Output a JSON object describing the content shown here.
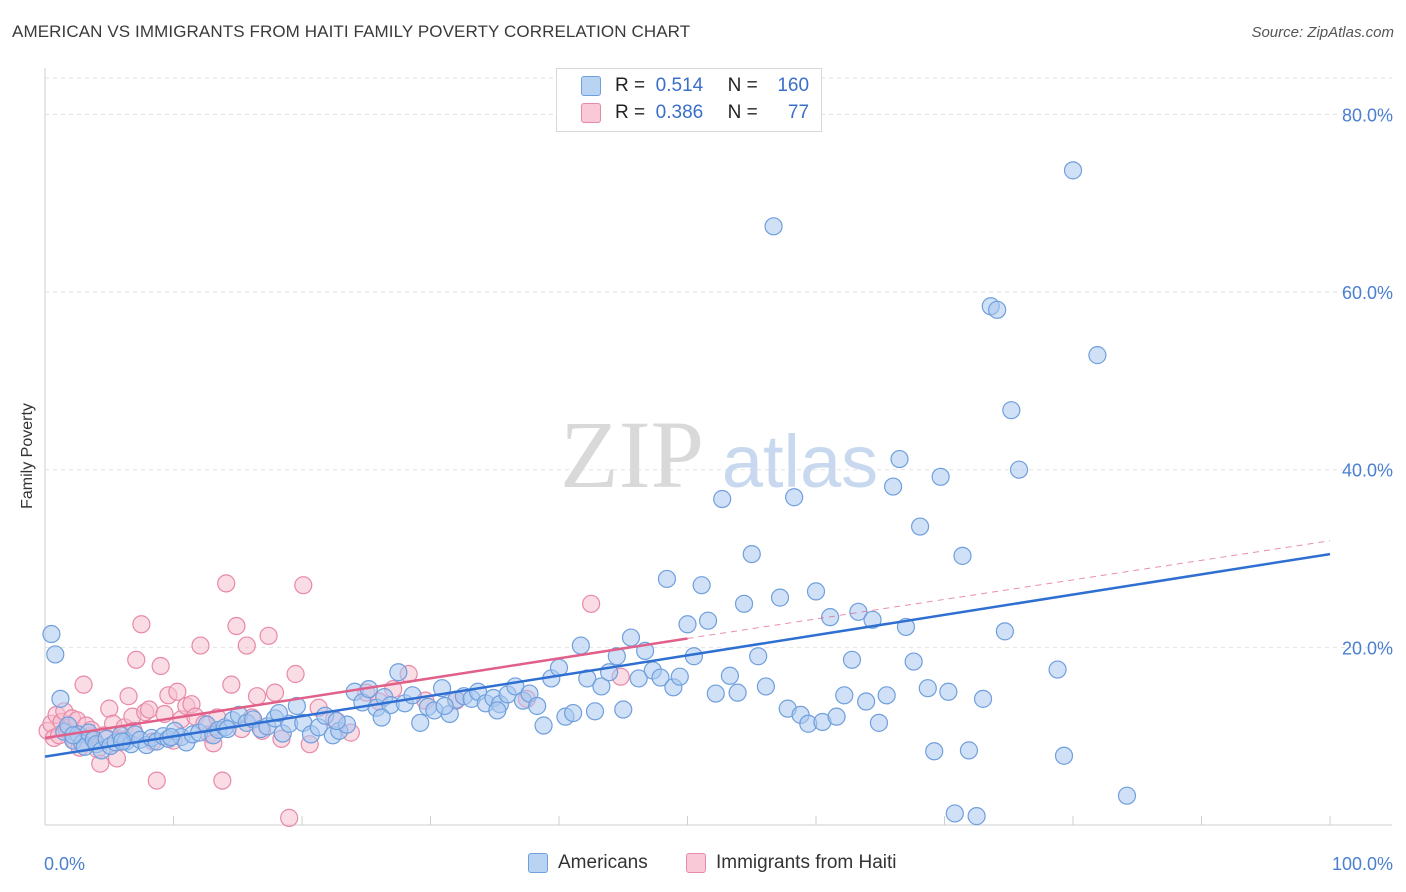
{
  "title": "AMERICAN VS IMMIGRANTS FROM HAITI FAMILY POVERTY CORRELATION CHART",
  "source": "Source: ZipAtlas.com",
  "watermark": {
    "zip": "ZIP",
    "atlas": "atlas"
  },
  "legend_top": {
    "rows": [
      {
        "r_label": "R =",
        "r_value": "0.514",
        "n_label": "N =",
        "n_value": "160"
      },
      {
        "r_label": "R =",
        "r_value": "0.386",
        "n_label": "N =",
        "n_value": "77"
      }
    ]
  },
  "legend_bottom": {
    "americans": "Americans",
    "haiti": "Immigrants from Haiti"
  },
  "colors": {
    "blue_fill": "#a9c8f0",
    "blue_stroke": "#6f9fdc",
    "blue_line": "#2e6fd1",
    "pink_fill": "#f6bfd0",
    "pink_stroke": "#e889a8",
    "pink_line": "#e0608a",
    "tick": "#4a7fd0",
    "grid": "#e2e2e2"
  },
  "chart_data": {
    "type": "scatter",
    "title": "AMERICAN VS IMMIGRANTS FROM HAITI FAMILY POVERTY CORRELATION CHART",
    "xlabel": "",
    "ylabel": "Family Poverty",
    "xlim": [
      0,
      100
    ],
    "ylim": [
      0,
      85
    ],
    "x_ticks": [
      "0.0%",
      "100.0%"
    ],
    "y_ticks": [
      {
        "value": 20,
        "label": "20.0%"
      },
      {
        "value": 40,
        "label": "40.0%"
      },
      {
        "value": 60,
        "label": "60.0%"
      },
      {
        "value": 80,
        "label": "80.0%"
      }
    ],
    "grid": true,
    "series": [
      {
        "name": "Americans",
        "trend": {
          "x": [
            0,
            100
          ],
          "y": [
            7.7,
            30.5
          ]
        },
        "points": [
          [
            0.5,
            21.5
          ],
          [
            0.8,
            19.2
          ],
          [
            1.2,
            14.2
          ],
          [
            1.5,
            10.5
          ],
          [
            1.8,
            11.2
          ],
          [
            2.2,
            9.5
          ],
          [
            2.6,
            10.2
          ],
          [
            2.9,
            9.2
          ],
          [
            3.1,
            8.8
          ],
          [
            3.4,
            10.4
          ],
          [
            3.8,
            9.6
          ],
          [
            4.0,
            9.1
          ],
          [
            4.4,
            8.4
          ],
          [
            4.8,
            9.7
          ],
          [
            5.1,
            8.9
          ],
          [
            5.5,
            9.3
          ],
          [
            5.9,
            10.1
          ],
          [
            6.3,
            9.4
          ],
          [
            6.7,
            9.1
          ],
          [
            7.0,
            10.2
          ],
          [
            7.4,
            9.6
          ],
          [
            7.9,
            9.0
          ],
          [
            8.3,
            9.8
          ],
          [
            8.7,
            9.4
          ],
          [
            9.2,
            10.0
          ],
          [
            9.6,
            9.7
          ],
          [
            10.1,
            10.6
          ],
          [
            10.6,
            9.9
          ],
          [
            11.0,
            9.3
          ],
          [
            11.5,
            10.2
          ],
          [
            12.0,
            10.4
          ],
          [
            12.6,
            11.3
          ],
          [
            13.1,
            10.1
          ],
          [
            13.5,
            10.7
          ],
          [
            14.0,
            11.0
          ],
          [
            14.6,
            11.8
          ],
          [
            15.1,
            12.4
          ],
          [
            15.7,
            11.5
          ],
          [
            16.2,
            11.9
          ],
          [
            16.8,
            10.8
          ],
          [
            17.3,
            11.1
          ],
          [
            17.9,
            12.0
          ],
          [
            18.5,
            10.3
          ],
          [
            19.0,
            11.4
          ],
          [
            19.6,
            13.4
          ],
          [
            20.1,
            11.5
          ],
          [
            20.7,
            10.2
          ],
          [
            21.3,
            11.0
          ],
          [
            21.8,
            12.3
          ],
          [
            22.4,
            10.1
          ],
          [
            22.9,
            10.6
          ],
          [
            23.5,
            11.3
          ],
          [
            24.1,
            15.0
          ],
          [
            24.7,
            13.8
          ],
          [
            25.2,
            15.3
          ],
          [
            25.8,
            13.2
          ],
          [
            26.4,
            14.4
          ],
          [
            26.9,
            13.5
          ],
          [
            27.5,
            17.2
          ],
          [
            28.0,
            13.7
          ],
          [
            28.6,
            14.6
          ],
          [
            29.2,
            11.5
          ],
          [
            29.8,
            13.3
          ],
          [
            30.3,
            12.9
          ],
          [
            30.9,
            15.4
          ],
          [
            31.5,
            12.5
          ],
          [
            32.0,
            14.1
          ],
          [
            32.6,
            14.5
          ],
          [
            33.2,
            14.2
          ],
          [
            33.7,
            15.0
          ],
          [
            34.3,
            13.7
          ],
          [
            34.9,
            14.3
          ],
          [
            35.4,
            13.6
          ],
          [
            36.0,
            14.7
          ],
          [
            36.6,
            15.6
          ],
          [
            37.2,
            14.0
          ],
          [
            37.7,
            14.8
          ],
          [
            38.3,
            13.4
          ],
          [
            38.8,
            11.2
          ],
          [
            39.4,
            16.5
          ],
          [
            40.0,
            17.7
          ],
          [
            40.5,
            12.2
          ],
          [
            41.1,
            12.6
          ],
          [
            41.7,
            20.2
          ],
          [
            42.2,
            16.5
          ],
          [
            42.8,
            12.8
          ],
          [
            43.3,
            15.6
          ],
          [
            43.9,
            17.2
          ],
          [
            44.5,
            19.0
          ],
          [
            45.0,
            13.0
          ],
          [
            45.6,
            21.1
          ],
          [
            46.2,
            16.5
          ],
          [
            46.7,
            19.6
          ],
          [
            47.3,
            17.4
          ],
          [
            47.9,
            16.6
          ],
          [
            48.4,
            27.7
          ],
          [
            48.9,
            15.5
          ],
          [
            49.4,
            16.7
          ],
          [
            50.0,
            22.6
          ],
          [
            50.5,
            19.0
          ],
          [
            51.1,
            27.0
          ],
          [
            51.6,
            23.0
          ],
          [
            52.2,
            14.8
          ],
          [
            52.7,
            36.7
          ],
          [
            53.3,
            16.8
          ],
          [
            53.9,
            14.9
          ],
          [
            54.4,
            24.9
          ],
          [
            55.0,
            30.5
          ],
          [
            55.5,
            19.0
          ],
          [
            56.1,
            15.6
          ],
          [
            56.7,
            67.4
          ],
          [
            57.2,
            25.6
          ],
          [
            57.8,
            13.1
          ],
          [
            58.3,
            36.9
          ],
          [
            58.8,
            12.4
          ],
          [
            59.4,
            11.4
          ],
          [
            60.0,
            26.3
          ],
          [
            60.5,
            11.6
          ],
          [
            61.1,
            23.4
          ],
          [
            61.6,
            12.2
          ],
          [
            62.2,
            14.6
          ],
          [
            62.8,
            18.6
          ],
          [
            63.3,
            24.0
          ],
          [
            63.9,
            13.9
          ],
          [
            64.4,
            23.1
          ],
          [
            64.9,
            11.5
          ],
          [
            65.5,
            14.6
          ],
          [
            66.0,
            38.1
          ],
          [
            66.5,
            41.2
          ],
          [
            67.0,
            22.3
          ],
          [
            67.6,
            18.4
          ],
          [
            68.1,
            33.6
          ],
          [
            68.7,
            15.4
          ],
          [
            69.2,
            8.3
          ],
          [
            69.7,
            39.2
          ],
          [
            70.3,
            15.0
          ],
          [
            70.8,
            1.3
          ],
          [
            71.4,
            30.3
          ],
          [
            71.9,
            8.4
          ],
          [
            72.5,
            1.0
          ],
          [
            73.0,
            14.2
          ],
          [
            73.6,
            58.4
          ],
          [
            74.1,
            58.0
          ],
          [
            74.7,
            21.8
          ],
          [
            75.2,
            46.7
          ],
          [
            75.8,
            40.0
          ],
          [
            78.8,
            17.5
          ],
          [
            79.3,
            7.8
          ],
          [
            80.0,
            73.7
          ],
          [
            81.9,
            52.9
          ],
          [
            84.2,
            3.3
          ],
          [
            2.2,
            10.1
          ],
          [
            6.0,
            9.4
          ],
          [
            9.8,
            9.9
          ],
          [
            14.2,
            10.8
          ],
          [
            18.2,
            12.6
          ],
          [
            22.7,
            11.7
          ],
          [
            26.2,
            12.1
          ],
          [
            31.1,
            13.4
          ],
          [
            35.2,
            12.9
          ]
        ]
      },
      {
        "name": "Immigrants from Haiti",
        "trend": {
          "x": [
            0,
            50
          ],
          "y": [
            9.8,
            21.0
          ]
        },
        "trend_dashed": {
          "x": [
            50,
            100
          ],
          "y": [
            21.0,
            32.0
          ]
        },
        "points": [
          [
            0.2,
            10.6
          ],
          [
            0.5,
            11.4
          ],
          [
            0.7,
            9.8
          ],
          [
            0.9,
            12.4
          ],
          [
            1.1,
            10.1
          ],
          [
            1.3,
            11.6
          ],
          [
            1.5,
            12.8
          ],
          [
            1.7,
            10.7
          ],
          [
            1.9,
            11.0
          ],
          [
            2.1,
            12.0
          ],
          [
            2.3,
            9.5
          ],
          [
            2.5,
            11.8
          ],
          [
            2.7,
            8.7
          ],
          [
            3.0,
            15.8
          ],
          [
            3.2,
            11.2
          ],
          [
            3.5,
            10.0
          ],
          [
            3.8,
            9.6
          ],
          [
            4.1,
            8.5
          ],
          [
            4.3,
            6.9
          ],
          [
            4.6,
            10.1
          ],
          [
            5.0,
            13.1
          ],
          [
            5.3,
            11.4
          ],
          [
            5.6,
            7.5
          ],
          [
            5.9,
            9.6
          ],
          [
            6.2,
            11.0
          ],
          [
            6.5,
            14.5
          ],
          [
            6.8,
            12.2
          ],
          [
            7.1,
            18.6
          ],
          [
            7.5,
            22.6
          ],
          [
            7.8,
            12.7
          ],
          [
            8.1,
            13.0
          ],
          [
            8.4,
            9.4
          ],
          [
            8.7,
            5.0
          ],
          [
            9.0,
            17.9
          ],
          [
            9.3,
            12.5
          ],
          [
            9.6,
            14.6
          ],
          [
            10.0,
            9.5
          ],
          [
            10.3,
            15.0
          ],
          [
            10.6,
            11.9
          ],
          [
            11.0,
            13.4
          ],
          [
            11.4,
            13.6
          ],
          [
            11.7,
            12.2
          ],
          [
            12.1,
            20.2
          ],
          [
            12.4,
            11.4
          ],
          [
            12.8,
            10.2
          ],
          [
            13.1,
            9.2
          ],
          [
            13.4,
            12.1
          ],
          [
            13.8,
            5.0
          ],
          [
            14.1,
            27.2
          ],
          [
            14.5,
            15.8
          ],
          [
            14.9,
            22.4
          ],
          [
            15.3,
            10.8
          ],
          [
            15.7,
            20.2
          ],
          [
            16.1,
            12.1
          ],
          [
            16.5,
            14.5
          ],
          [
            16.9,
            10.6
          ],
          [
            17.4,
            21.3
          ],
          [
            17.9,
            14.9
          ],
          [
            18.4,
            9.7
          ],
          [
            19.0,
            0.8
          ],
          [
            19.5,
            17.0
          ],
          [
            20.1,
            27.0
          ],
          [
            20.6,
            9.1
          ],
          [
            21.3,
            13.2
          ],
          [
            22.5,
            11.9
          ],
          [
            23.8,
            10.4
          ],
          [
            25.0,
            14.9
          ],
          [
            26.0,
            13.9
          ],
          [
            27.1,
            15.3
          ],
          [
            28.3,
            17.0
          ],
          [
            29.6,
            14.0
          ],
          [
            32.0,
            14.0
          ],
          [
            37.5,
            14.2
          ],
          [
            42.5,
            24.9
          ],
          [
            44.8,
            16.7
          ],
          [
            3.6,
            10.7
          ],
          [
            6.9,
            10.6
          ]
        ]
      }
    ]
  }
}
